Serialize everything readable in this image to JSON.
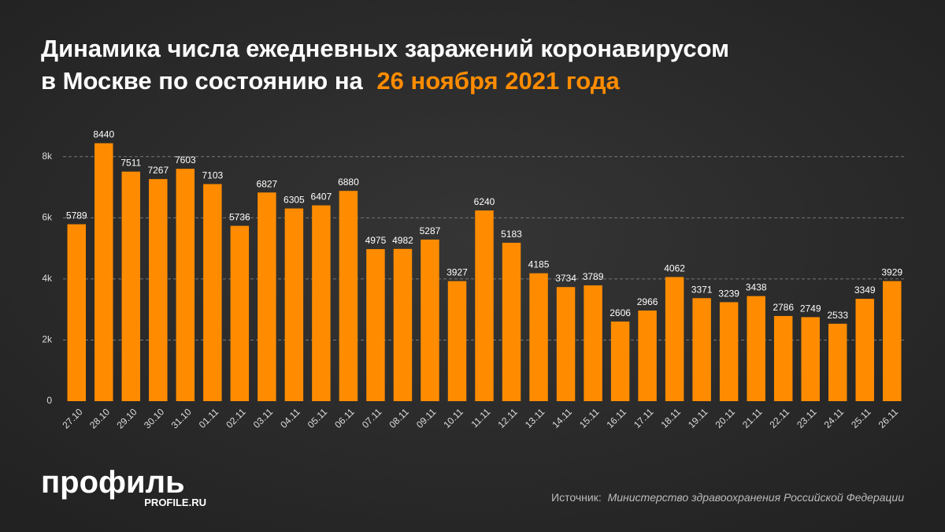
{
  "chart_data": {
    "type": "bar",
    "title": [
      "Динамика числа ежедневных заражений коронавирусом",
      "в Москве по состоянию на"
    ],
    "title_highlight": "26 ноября 2021 года",
    "categories": [
      "27.10",
      "28.10",
      "29.10",
      "30.10",
      "31.10",
      "01.11",
      "02.11",
      "03.11",
      "04.11",
      "05.11",
      "06.11",
      "07.11",
      "08.11",
      "09.11",
      "10.11",
      "11.11",
      "12.11",
      "13.11",
      "14.11",
      "15.11",
      "16.11",
      "17.11",
      "18.11",
      "19.11",
      "20.11",
      "21.11",
      "22.11",
      "23.11",
      "24.11",
      "25.11",
      "26.11"
    ],
    "values": [
      5789,
      8440,
      7511,
      7267,
      7603,
      7103,
      5736,
      6827,
      6305,
      6407,
      6880,
      4975,
      4982,
      5287,
      3927,
      6240,
      5183,
      4185,
      3734,
      3789,
      2606,
      2966,
      4062,
      3371,
      3239,
      3438,
      2786,
      2749,
      2533,
      3349,
      3929
    ],
    "color": "#ff8c00",
    "ylim": [
      0,
      9000
    ],
    "yticks": [
      0,
      {
        "value": 2000,
        "label": "2k"
      },
      {
        "value": 4000,
        "label": "4k"
      },
      {
        "value": 6000,
        "label": "6k"
      },
      {
        "value": 8000,
        "label": "8k"
      }
    ],
    "grid": true,
    "source_label": "Источник:",
    "source": "Министерство здравоохранения Российской Федерации",
    "logo": "профиль",
    "logo_url": "PROFILE.RU"
  }
}
